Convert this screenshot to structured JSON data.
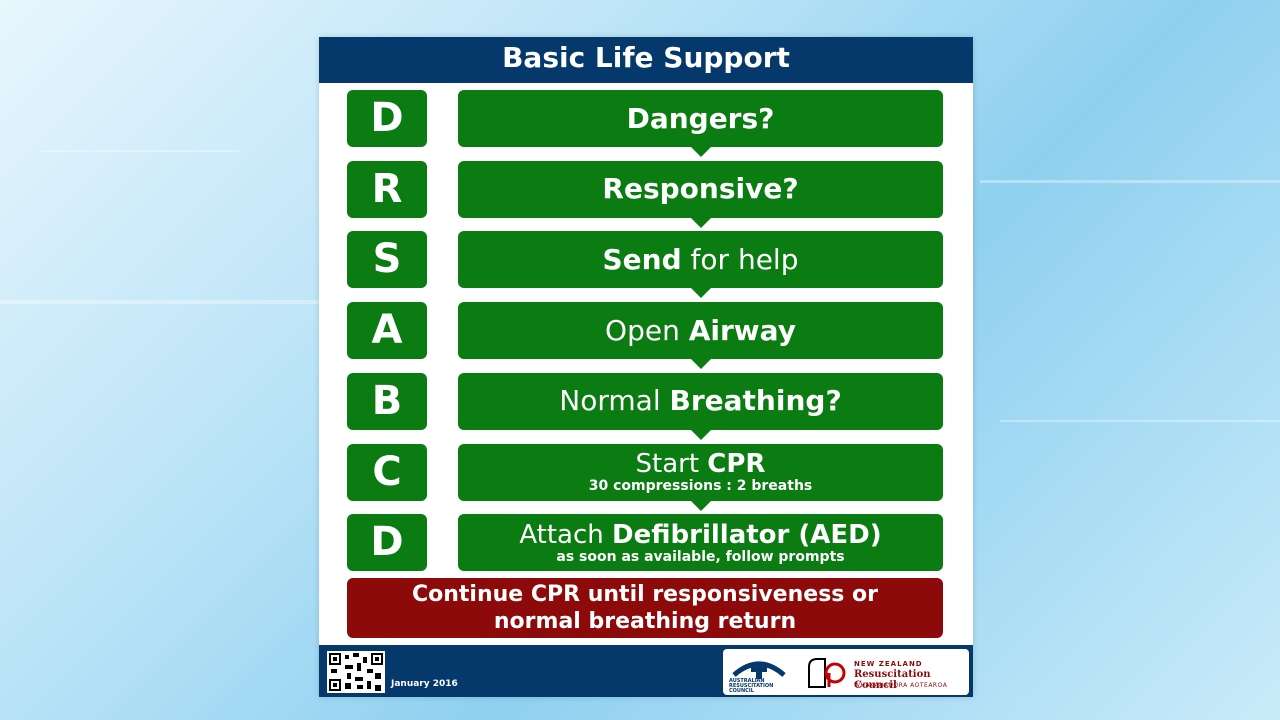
{
  "poster": {
    "title": "Basic Life Support",
    "steps": [
      {
        "letter": "D",
        "parts": [
          {
            "text": "Dangers?",
            "bold": true
          }
        ],
        "sub": ""
      },
      {
        "letter": "R",
        "parts": [
          {
            "text": "Responsive?",
            "bold": true
          }
        ],
        "sub": ""
      },
      {
        "letter": "S",
        "parts": [
          {
            "text": "Send",
            "bold": true
          },
          {
            "text": " for help",
            "bold": false
          }
        ],
        "sub": ""
      },
      {
        "letter": "A",
        "parts": [
          {
            "text": "Open ",
            "bold": false
          },
          {
            "text": "Airway",
            "bold": true
          }
        ],
        "sub": ""
      },
      {
        "letter": "B",
        "parts": [
          {
            "text": "Normal ",
            "bold": false
          },
          {
            "text": "Breathing?",
            "bold": true
          }
        ],
        "sub": ""
      },
      {
        "letter": "C",
        "parts": [
          {
            "text": "Start ",
            "bold": false
          },
          {
            "text": "CPR",
            "bold": true
          }
        ],
        "sub": "30 compressions : 2 breaths"
      },
      {
        "letter": "D",
        "parts": [
          {
            "text": "Attach ",
            "bold": false
          },
          {
            "text": "Defibrillator (AED)",
            "bold": true
          }
        ],
        "sub": "as soon as available, follow prompts"
      }
    ],
    "continue_line1": "Continue CPR until responsiveness or",
    "continue_line2": "normal breathing return"
  },
  "footer": {
    "date": "January 2016",
    "arc_text": "AUSTRALIAN RESUSCITATION COUNCIL",
    "nzrc_line1": "NEW ZEALAND",
    "nzrc_line2": "Resuscitation Council",
    "nzrc_line3": "WHAKAHAUORA AOTEAROA"
  },
  "colors": {
    "header_blue": "#05386b",
    "step_green": "#0a7c12",
    "continue_red": "#8c0a0a"
  },
  "icons": [
    "qr-code-icon",
    "arc-logo-icon",
    "nzrc-logo-icon"
  ]
}
